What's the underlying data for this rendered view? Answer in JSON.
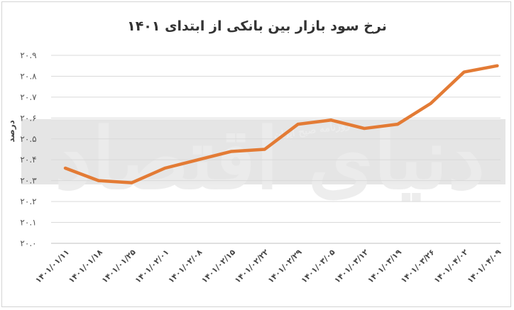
{
  "chart_data": {
    "type": "line",
    "title": "نرخ سود بازار بین بانکی از ابتدای ۱۴۰۱",
    "ylabel": "درصد",
    "xlabel": "",
    "ylim": [
      20.0,
      20.9
    ],
    "yticks": [
      "۲۰.۰",
      "۲۰.۱",
      "۲۰.۲",
      "۲۰.۳",
      "۲۰.۴",
      "۲۰.۵",
      "۲۰.۶",
      "۲۰.۷",
      "۲۰.۸",
      "۲۰.۹"
    ],
    "ytick_values": [
      20.0,
      20.1,
      20.2,
      20.3,
      20.4,
      20.5,
      20.6,
      20.7,
      20.8,
      20.9
    ],
    "categories": [
      "۱۴۰۱/۰۱/۱۱",
      "۱۴۰۱/۰۱/۱۸",
      "۱۴۰۱/۰۱/۲۵",
      "۱۴۰۱/۰۲/۰۱",
      "۱۴۰۱/۰۲/۰۸",
      "۱۴۰۱/۰۲/۱۵",
      "۱۴۰۱/۰۲/۲۲",
      "۱۴۰۱/۰۲/۲۹",
      "۱۴۰۱/۰۳/۰۵",
      "۱۴۰۱/۰۳/۱۲",
      "۱۴۰۱/۰۳/۱۹",
      "۱۴۰۱/۰۳/۲۶",
      "۱۴۰۱/۰۴/۰۲",
      "۱۴۰۱/۰۴/۰۹"
    ],
    "series": [
      {
        "values": [
          20.36,
          20.3,
          20.29,
          20.36,
          20.4,
          20.44,
          20.45,
          20.57,
          20.59,
          20.55,
          20.57,
          20.67,
          20.82,
          20.85
        ]
      }
    ],
    "grid": true,
    "legend": "none",
    "line_color": "#e37b35",
    "gridline_color": "#d9d9d9"
  },
  "watermark": {
    "brand": "دنیای اقتصاد",
    "tagline": "روزنامه صبح ایران",
    "band_color": "#dcdcdc",
    "text_color": "#ececec"
  }
}
